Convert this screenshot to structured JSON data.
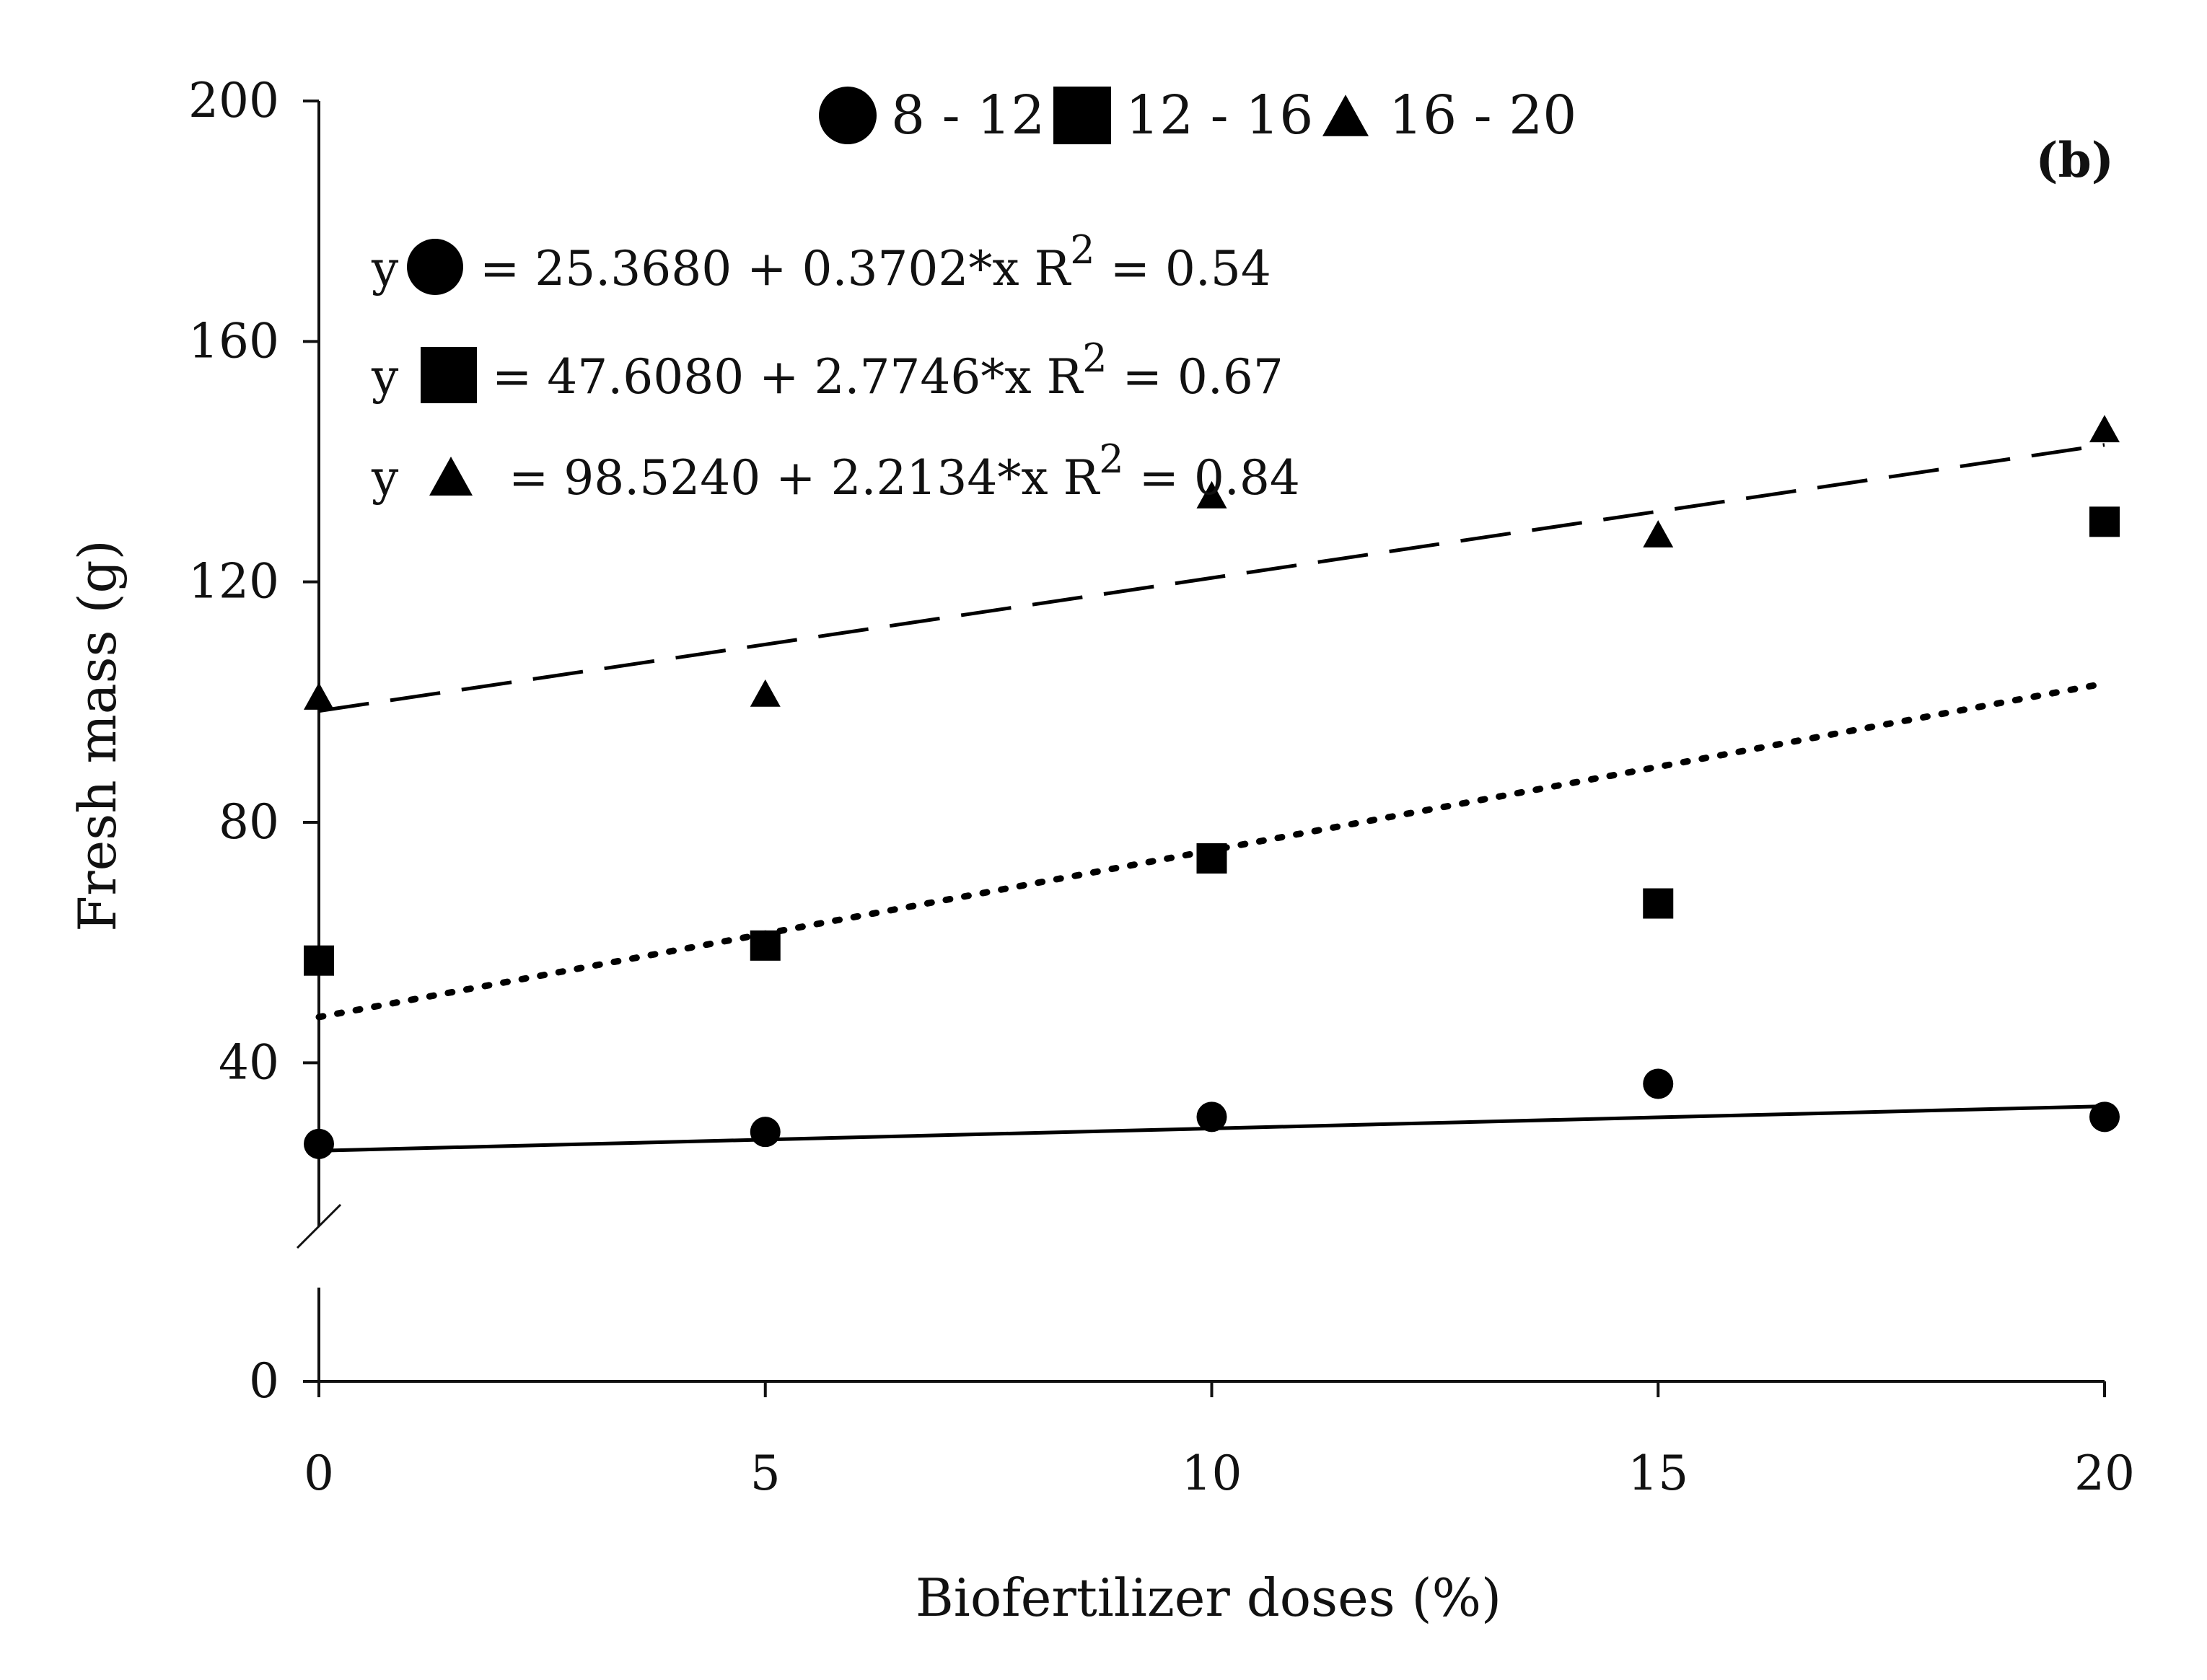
{
  "chart_data": {
    "type": "scatter",
    "panel_label": "(b)",
    "xlabel": "Biofertilizer doses (%)",
    "ylabel": "Fresh mass (g)",
    "xlim": [
      0,
      20
    ],
    "ylim": [
      0,
      200
    ],
    "axis_break": {
      "from": 20,
      "to": 25
    },
    "x_ticks": [
      0,
      5,
      10,
      15,
      20
    ],
    "x_tick_labels": [
      "0",
      "5",
      "10",
      "15",
      "20"
    ],
    "y_ticks": [
      0,
      40,
      80,
      120,
      160,
      200
    ],
    "y_tick_labels": [
      "0",
      "40",
      "80",
      "120",
      "160",
      "200"
    ],
    "grid": false,
    "legend_position": "top-center",
    "series": [
      {
        "name": "8 - 12",
        "marker": "circle",
        "line_style": "solid",
        "x": [
          0,
          5,
          10,
          15,
          20
        ],
        "values": [
          26.5,
          28.5,
          31,
          36.5,
          31
        ],
        "fit": {
          "intercept": 25.368,
          "slope": 0.3702
        },
        "eq_prefix": "y",
        "eq_text": "= 25.3680 + 0.3702*x R",
        "eq_sup": "2",
        "eq_r2": "= 0.54"
      },
      {
        "name": "12 - 16",
        "marker": "square",
        "line_style": "dotted",
        "x": [
          0,
          5,
          10,
          15,
          20
        ],
        "values": [
          57,
          59.5,
          74,
          66.5,
          130
        ],
        "fit": {
          "intercept": 47.608,
          "slope": 2.7746
        },
        "eq_prefix": "y",
        "eq_text": "= 47.6080 + 2.7746*x R",
        "eq_sup": "2",
        "eq_r2": "= 0.67"
      },
      {
        "name": "16 - 20",
        "marker": "triangle",
        "line_style": "dashed",
        "x": [
          0,
          5,
          10,
          15,
          20
        ],
        "values": [
          101,
          101.5,
          134.5,
          128,
          145.5
        ],
        "fit": {
          "intercept": 98.524,
          "slope": 2.2134
        },
        "eq_prefix": "y",
        "eq_text": "= 98.5240 + 2.2134*x R",
        "eq_sup": "2",
        "eq_r2": "= 0.84"
      }
    ]
  }
}
